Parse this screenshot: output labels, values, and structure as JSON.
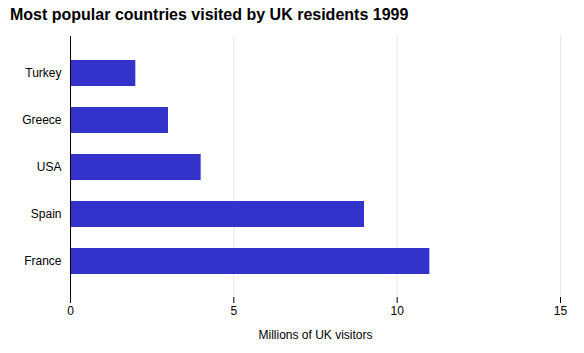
{
  "chart_data": {
    "type": "bar",
    "orientation": "horizontal",
    "title": "Most popular countries visited by UK residents 1999",
    "categories": [
      "France",
      "Spain",
      "USA",
      "Greece",
      "Turkey"
    ],
    "values": [
      11.0,
      9.0,
      4.0,
      3.0,
      2.0
    ],
    "color": "#3333cc",
    "xlabel": "Millions of UK visitors",
    "xlim": [
      0,
      15
    ],
    "xticks": [
      0,
      5,
      10,
      15
    ],
    "grid": true
  }
}
